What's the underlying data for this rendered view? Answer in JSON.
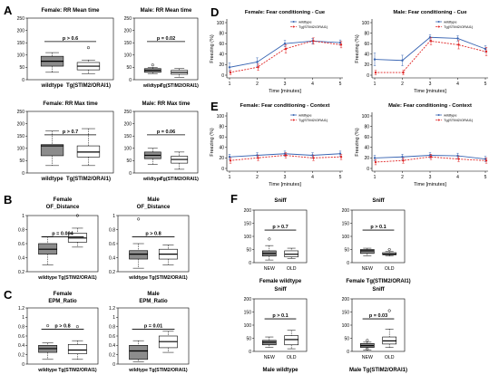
{
  "colors": {
    "wildtype": "#3a66b3",
    "mutant": "#e02424",
    "dark_box": "#8c8c8c",
    "light_box": "#ffffff"
  },
  "chart_data": [
    {
      "panel": "A",
      "type": "boxplot",
      "title": "Female: RR Mean time",
      "ylim": [
        0,
        250
      ],
      "yticks": [
        0,
        50,
        100,
        150,
        200,
        250
      ],
      "categories": [
        "wildtype",
        "Tg(STIM2/ORAI1)"
      ],
      "pvalue": "p > 0.6",
      "boxes": [
        {
          "min": 30,
          "q1": 55,
          "median": 75,
          "q3": 95,
          "max": 110,
          "outliers": [],
          "fill": "dark"
        },
        {
          "min": 25,
          "q1": 40,
          "median": 55,
          "q3": 70,
          "max": 80,
          "outliers": [
            130
          ],
          "fill": "light"
        }
      ]
    },
    {
      "panel": "A",
      "type": "boxplot",
      "title": "Male: RR Mean time",
      "ylim": [
        0,
        250
      ],
      "yticks": [
        0,
        50,
        100,
        150,
        200,
        250
      ],
      "categories": [
        "wildtype",
        "Tg(STIM2/ORAI1)"
      ],
      "pvalue": "p = 0.02",
      "boxes": [
        {
          "min": 25,
          "q1": 30,
          "median": 38,
          "q3": 45,
          "max": 50,
          "outliers": [
            60
          ],
          "fill": "dark"
        },
        {
          "min": 10,
          "q1": 22,
          "median": 30,
          "q3": 38,
          "max": 45,
          "outliers": [],
          "fill": "light"
        }
      ]
    },
    {
      "panel": "A",
      "type": "boxplot",
      "title": "Female: RR Max time",
      "ylim": [
        0,
        250
      ],
      "yticks": [
        0,
        50,
        100,
        150,
        200,
        250
      ],
      "categories": [
        "wildtype",
        "Tg(STIM2/ORAI1)"
      ],
      "pvalue": "p > 0.7",
      "boxes": [
        {
          "min": 30,
          "q1": 70,
          "median": 110,
          "q3": 115,
          "max": 170,
          "outliers": [],
          "fill": "dark"
        },
        {
          "min": 30,
          "q1": 65,
          "median": 85,
          "q3": 110,
          "max": 180,
          "outliers": [],
          "fill": "light"
        }
      ]
    },
    {
      "panel": "A",
      "type": "boxplot",
      "title": "Male: RR Max time",
      "ylim": [
        0,
        250
      ],
      "yticks": [
        0,
        50,
        100,
        150,
        200,
        250
      ],
      "categories": [
        "wildtype",
        "Tg(STIM2/ORAI1)"
      ],
      "pvalue": "p = 0.06",
      "boxes": [
        {
          "min": 35,
          "q1": 58,
          "median": 72,
          "q3": 85,
          "max": 100,
          "outliers": [],
          "fill": "dark"
        },
        {
          "min": 15,
          "q1": 40,
          "median": 55,
          "q3": 68,
          "max": 85,
          "outliers": [],
          "fill": "light"
        }
      ]
    },
    {
      "panel": "B",
      "type": "boxplot",
      "title": "Female\nOF_Distance",
      "ylim": [
        0.2,
        1.0
      ],
      "yticks": [
        0.2,
        0.4,
        0.6,
        0.8,
        1.0
      ],
      "categories": [
        "wildtype",
        "Tg(STIM2/ORAI1)"
      ],
      "pvalue": "p = 0.004",
      "boxes": [
        {
          "min": 0.3,
          "q1": 0.45,
          "median": 0.52,
          "q3": 0.6,
          "max": 0.7,
          "outliers": [],
          "fill": "dark"
        },
        {
          "min": 0.55,
          "q1": 0.62,
          "median": 0.68,
          "q3": 0.75,
          "max": 0.82,
          "outliers": [
            1.0
          ],
          "fill": "light"
        }
      ]
    },
    {
      "panel": "B",
      "type": "boxplot",
      "title": "Male\nOF_Distance",
      "ylim": [
        0.2,
        1.0
      ],
      "yticks": [
        0.2,
        0.4,
        0.6,
        0.8,
        1.0
      ],
      "categories": [
        "wildtype",
        "Tg(STIM2/ORAI1)"
      ],
      "pvalue": "p > 0.8",
      "boxes": [
        {
          "min": 0.25,
          "q1": 0.38,
          "median": 0.45,
          "q3": 0.5,
          "max": 0.6,
          "outliers": [
            0.95
          ],
          "fill": "dark"
        },
        {
          "min": 0.3,
          "q1": 0.38,
          "median": 0.45,
          "q3": 0.52,
          "max": 0.58,
          "outliers": [],
          "fill": "light"
        }
      ]
    },
    {
      "panel": "C",
      "type": "boxplot",
      "title": "Female\nEPM_Ratio",
      "ylim": [
        0,
        1.2
      ],
      "yticks": [
        0,
        0.2,
        0.4,
        0.6,
        0.8,
        1.0,
        1.2
      ],
      "categories": [
        "wildtype",
        "Tg(STIM2/ORAI1)"
      ],
      "pvalue": "p > 0.8",
      "boxes": [
        {
          "min": 0.1,
          "q1": 0.25,
          "median": 0.33,
          "q3": 0.4,
          "max": 0.45,
          "outliers": [
            0.82
          ],
          "fill": "dark"
        },
        {
          "min": 0.1,
          "q1": 0.22,
          "median": 0.3,
          "q3": 0.42,
          "max": 0.5,
          "outliers": [
            0.8
          ],
          "fill": "light"
        }
      ]
    },
    {
      "panel": "C",
      "type": "boxplot",
      "title": "Male\nEPM_Ratio",
      "ylim": [
        0,
        1.2
      ],
      "yticks": [
        0,
        0.2,
        0.4,
        0.6,
        0.8,
        1.0,
        1.2
      ],
      "categories": [
        "wildtype",
        "Tg(STIM2/ORAI1)"
      ],
      "pvalue": "p = 0.01",
      "boxes": [
        {
          "min": 0.05,
          "q1": 0.1,
          "median": 0.28,
          "q3": 0.4,
          "max": 0.5,
          "outliers": [],
          "fill": "dark"
        },
        {
          "min": 0.25,
          "q1": 0.35,
          "median": 0.48,
          "q3": 0.6,
          "max": 0.7,
          "outliers": [],
          "fill": "light"
        }
      ]
    },
    {
      "panel": "D",
      "type": "line",
      "title": "Female: Fear conditioning - Cue",
      "xlabel": "Time [minutes]",
      "ylabel": "Freezing (%)",
      "ylim": [
        0,
        100
      ],
      "yticks": [
        0,
        20,
        40,
        60,
        80,
        100
      ],
      "x": [
        1,
        2,
        3,
        4,
        5
      ],
      "series": [
        {
          "name": "wildtype",
          "values": [
            15,
            25,
            60,
            65,
            62
          ],
          "err": [
            8,
            8,
            6,
            5,
            5
          ]
        },
        {
          "name": "Tg(STIM2/ORAI1)",
          "values": [
            5,
            15,
            50,
            65,
            58
          ],
          "err": [
            4,
            6,
            8,
            6,
            6
          ]
        }
      ]
    },
    {
      "panel": "D",
      "type": "line",
      "title": "Male: Fear conditioning - Cue",
      "xlabel": "Time [minutes]",
      "ylabel": "Freezing (%)",
      "ylim": [
        0,
        100
      ],
      "yticks": [
        0,
        20,
        40,
        60,
        80,
        100
      ],
      "x": [
        1,
        2,
        3,
        4,
        5
      ],
      "series": [
        {
          "name": "wildtype",
          "values": [
            30,
            28,
            72,
            70,
            50
          ],
          "err": [
            12,
            10,
            5,
            5,
            6
          ]
        },
        {
          "name": "Tg(STIM2/ORAI1)",
          "values": [
            5,
            5,
            65,
            58,
            45
          ],
          "err": [
            4,
            4,
            7,
            8,
            8
          ]
        }
      ]
    },
    {
      "panel": "E",
      "type": "line",
      "title": "Female: Fear conditioning - Context",
      "xlabel": "Time [minutes]",
      "ylabel": "Freezing (%)",
      "ylim": [
        0,
        100
      ],
      "yticks": [
        0,
        20,
        40,
        60,
        80,
        100
      ],
      "x": [
        1,
        2,
        3,
        4,
        5
      ],
      "series": [
        {
          "name": "wildtype",
          "values": [
            22,
            25,
            28,
            25,
            28
          ],
          "err": [
            5,
            5,
            5,
            5,
            5
          ]
        },
        {
          "name": "Tg(STIM2/ORAI1)",
          "values": [
            15,
            20,
            25,
            20,
            22
          ],
          "err": [
            5,
            5,
            5,
            5,
            5
          ]
        }
      ]
    },
    {
      "panel": "E",
      "type": "line",
      "title": "Male: Fear conditioning - Context",
      "xlabel": "Time [minutes]",
      "ylabel": "Freezing (%)",
      "ylim": [
        0,
        100
      ],
      "yticks": [
        0,
        20,
        40,
        60,
        80,
        100
      ],
      "x": [
        1,
        2,
        3,
        4,
        5
      ],
      "series": [
        {
          "name": "wildtype",
          "values": [
            20,
            22,
            25,
            24,
            18
          ],
          "err": [
            5,
            5,
            5,
            5,
            5
          ]
        },
        {
          "name": "Tg(STIM2/ORAI1)",
          "values": [
            12,
            15,
            22,
            18,
            15
          ],
          "err": [
            5,
            5,
            5,
            5,
            5
          ]
        }
      ]
    },
    {
      "panel": "F",
      "type": "boxplot",
      "title": "Sniff",
      "caption": "Female wildtype",
      "ylim": [
        0,
        200
      ],
      "yticks": [
        0,
        50,
        100,
        150,
        200
      ],
      "categories": [
        "NEW",
        "OLD"
      ],
      "pvalue": "p > 0.7",
      "boxes": [
        {
          "min": 10,
          "q1": 25,
          "median": 35,
          "q3": 45,
          "max": 65,
          "outliers": [
            90
          ],
          "fill": "dark"
        },
        {
          "min": 15,
          "q1": 22,
          "median": 32,
          "q3": 45,
          "max": 55,
          "outliers": [],
          "fill": "light"
        }
      ]
    },
    {
      "panel": "F",
      "type": "boxplot",
      "title": "Sniff",
      "caption": "Female Tg(STIM2/ORAI1)",
      "ylim": [
        0,
        200
      ],
      "yticks": [
        0,
        50,
        100,
        150,
        200
      ],
      "categories": [
        "NEW",
        "OLD"
      ],
      "pvalue": "p > 0.1",
      "boxes": [
        {
          "min": 25,
          "q1": 35,
          "median": 45,
          "q3": 50,
          "max": 55,
          "outliers": [],
          "fill": "dark"
        },
        {
          "min": 25,
          "q1": 30,
          "median": 33,
          "q3": 38,
          "max": 42,
          "outliers": [
            50
          ],
          "fill": "light"
        }
      ]
    },
    {
      "panel": "F",
      "type": "boxplot",
      "title": "Sniff",
      "caption": "Male wildtype",
      "ylim": [
        0,
        200
      ],
      "yticks": [
        0,
        50,
        100,
        150,
        200
      ],
      "categories": [
        "NEW",
        "OLD"
      ],
      "pvalue": "p > 0.1",
      "boxes": [
        {
          "min": 15,
          "q1": 25,
          "median": 35,
          "q3": 42,
          "max": 55,
          "outliers": [],
          "fill": "dark"
        },
        {
          "min": 10,
          "q1": 25,
          "median": 45,
          "q3": 60,
          "max": 80,
          "outliers": [],
          "fill": "light"
        }
      ]
    },
    {
      "panel": "F",
      "type": "boxplot",
      "title": "Sniff",
      "caption": "Male Tg(STIM2/ORAI1)",
      "ylim": [
        0,
        200
      ],
      "yticks": [
        0,
        50,
        100,
        150,
        200
      ],
      "categories": [
        "NEW",
        "OLD"
      ],
      "pvalue": "p = 0.03",
      "boxes": [
        {
          "min": 5,
          "q1": 15,
          "median": 22,
          "q3": 30,
          "max": 35,
          "outliers": [
            42,
            10
          ],
          "fill": "dark"
        },
        {
          "min": 15,
          "q1": 28,
          "median": 40,
          "q3": 55,
          "max": 85,
          "outliers": [
            155
          ],
          "fill": "light"
        }
      ]
    }
  ]
}
